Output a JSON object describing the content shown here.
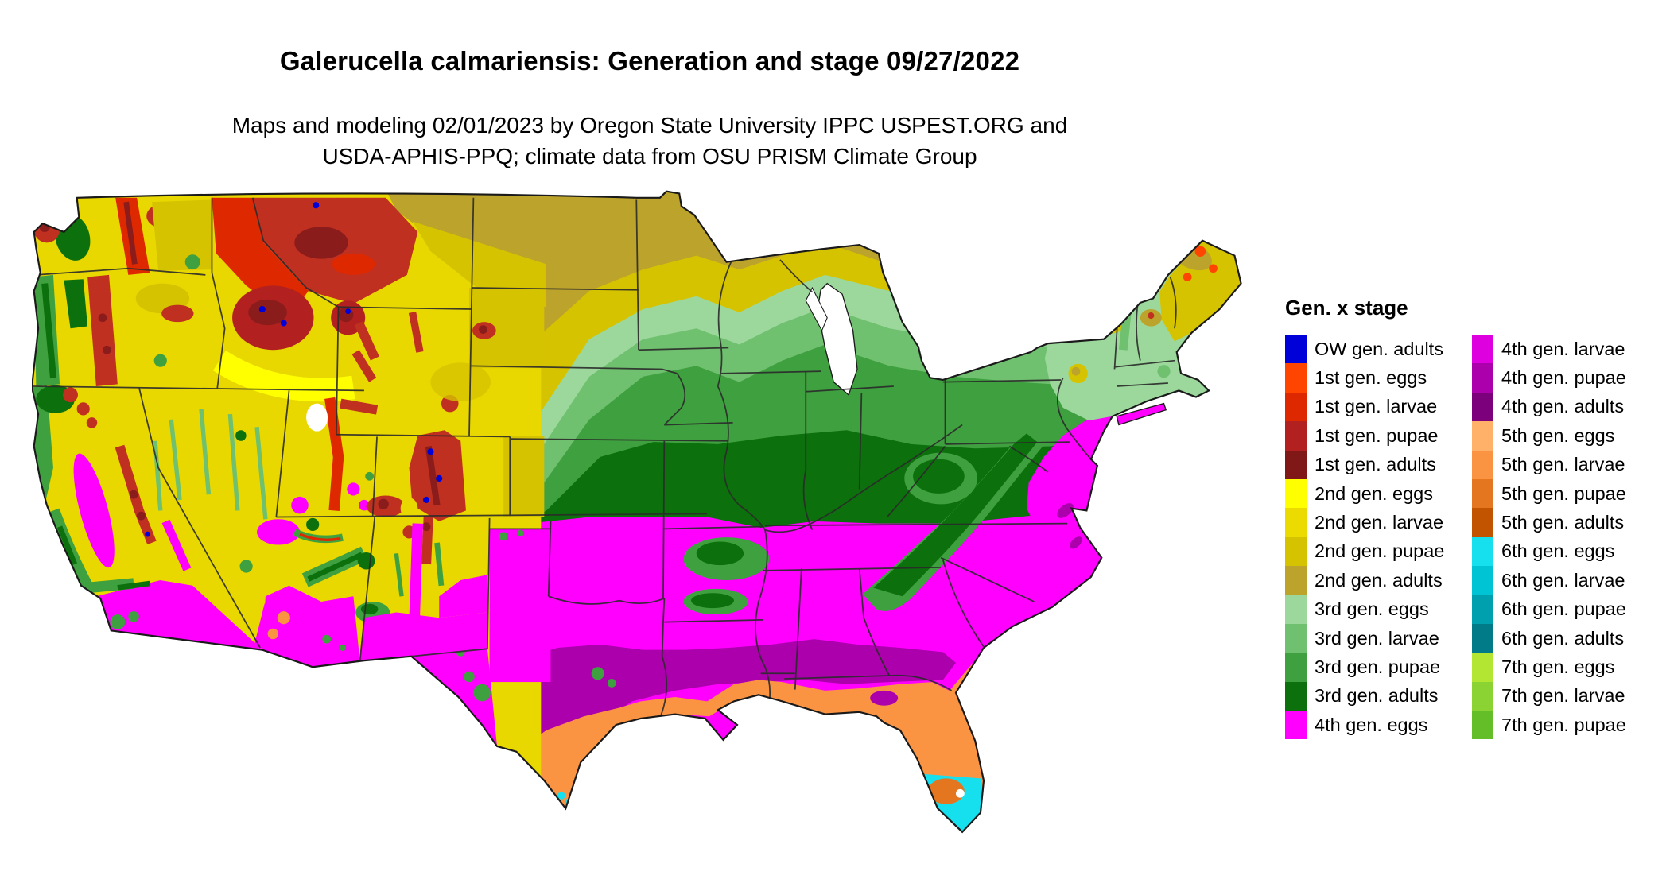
{
  "header": {
    "title": "Galerucella calmariensis: Generation and stage 09/27/2022",
    "subtitle_line1": "Maps and modeling 02/01/2023 by Oregon State University IPPC USPEST.ORG and",
    "subtitle_line2": "USDA-APHIS-PPQ; climate data from OSU PRISM Climate Group"
  },
  "legend": {
    "title": "Gen. x stage",
    "columns": [
      {
        "items": [
          {
            "label": "OW gen. adults",
            "color": "#0000D9"
          },
          {
            "label": "1st gen. eggs",
            "color": "#FF4500"
          },
          {
            "label": "1st gen. larvae",
            "color": "#DE2900"
          },
          {
            "label": "1st gen. pupae",
            "color": "#B22020"
          },
          {
            "label": "1st gen. adults",
            "color": "#801818"
          },
          {
            "label": "2nd gen. eggs",
            "color": "#FFFF00"
          },
          {
            "label": "2nd gen. larvae",
            "color": "#EBDB00"
          },
          {
            "label": "2nd gen. pupae",
            "color": "#D6C300"
          },
          {
            "label": "2nd gen. adults",
            "color": "#BCA32B"
          },
          {
            "label": "3rd gen. eggs",
            "color": "#9CD89C"
          },
          {
            "label": "3rd gen. larvae",
            "color": "#6FC06F"
          },
          {
            "label": "3rd gen. pupae",
            "color": "#3FA03F"
          },
          {
            "label": "3rd gen. adults",
            "color": "#0C700C"
          },
          {
            "label": "4th gen. eggs",
            "color": "#FF00FF"
          }
        ]
      },
      {
        "items": [
          {
            "label": "4th gen. larvae",
            "color": "#DF00DF"
          },
          {
            "label": "4th gen. pupae",
            "color": "#AC00AC"
          },
          {
            "label": "4th gen. adults",
            "color": "#7C007C"
          },
          {
            "label": "5th gen. eggs",
            "color": "#FFB169"
          },
          {
            "label": "5th gen. larvae",
            "color": "#FA9442"
          },
          {
            "label": "5th gen. pupae",
            "color": "#E3761F"
          },
          {
            "label": "5th gen. adults",
            "color": "#C25400"
          },
          {
            "label": "6th gen. eggs",
            "color": "#16E0EE"
          },
          {
            "label": "6th gen. larvae",
            "color": "#00C3D3"
          },
          {
            "label": "6th gen. pupae",
            "color": "#00A0AE"
          },
          {
            "label": "6th gen. adults",
            "color": "#007B87"
          },
          {
            "label": "7th gen. eggs",
            "color": "#B3E632"
          },
          {
            "label": "7th gen. larvae",
            "color": "#8BD233"
          },
          {
            "label": "7th gen. pupae",
            "color": "#63BE28"
          }
        ]
      }
    ]
  },
  "map": {
    "outline_color": "#1a1a1a",
    "water_color": "#ffffff"
  }
}
